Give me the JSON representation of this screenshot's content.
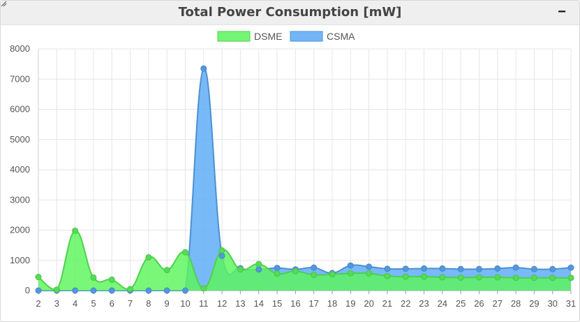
{
  "panel": {
    "title": "Total Power Consumption [mW]",
    "collapse_label": "−"
  },
  "chart_data": {
    "type": "area",
    "title": "Total Power Consumption [mW]",
    "xlabel": "",
    "ylabel": "",
    "x": [
      2,
      3,
      4,
      5,
      6,
      7,
      8,
      9,
      10,
      11,
      12,
      13,
      14,
      15,
      16,
      17,
      18,
      19,
      20,
      21,
      22,
      23,
      24,
      25,
      26,
      27,
      28,
      29,
      30,
      31
    ],
    "ylim": [
      0,
      8000
    ],
    "yticks": [
      0,
      1000,
      2000,
      3000,
      4000,
      5000,
      6000,
      7000,
      8000
    ],
    "grid": true,
    "legend_position": "top-center",
    "series": [
      {
        "name": "DSME",
        "color": "#5cf55c",
        "values": [
          450,
          30,
          1980,
          430,
          360,
          50,
          1100,
          680,
          1270,
          70,
          1330,
          700,
          880,
          560,
          640,
          520,
          540,
          570,
          570,
          480,
          460,
          460,
          440,
          430,
          440,
          440,
          420,
          420,
          420,
          420
        ]
      },
      {
        "name": "CSMA",
        "color": "#5aa9f7",
        "values": [
          0,
          0,
          0,
          0,
          0,
          0,
          0,
          0,
          0,
          7350,
          1150,
          740,
          700,
          750,
          700,
          760,
          580,
          830,
          790,
          720,
          720,
          730,
          730,
          710,
          710,
          730,
          760,
          710,
          710,
          760
        ]
      }
    ]
  }
}
